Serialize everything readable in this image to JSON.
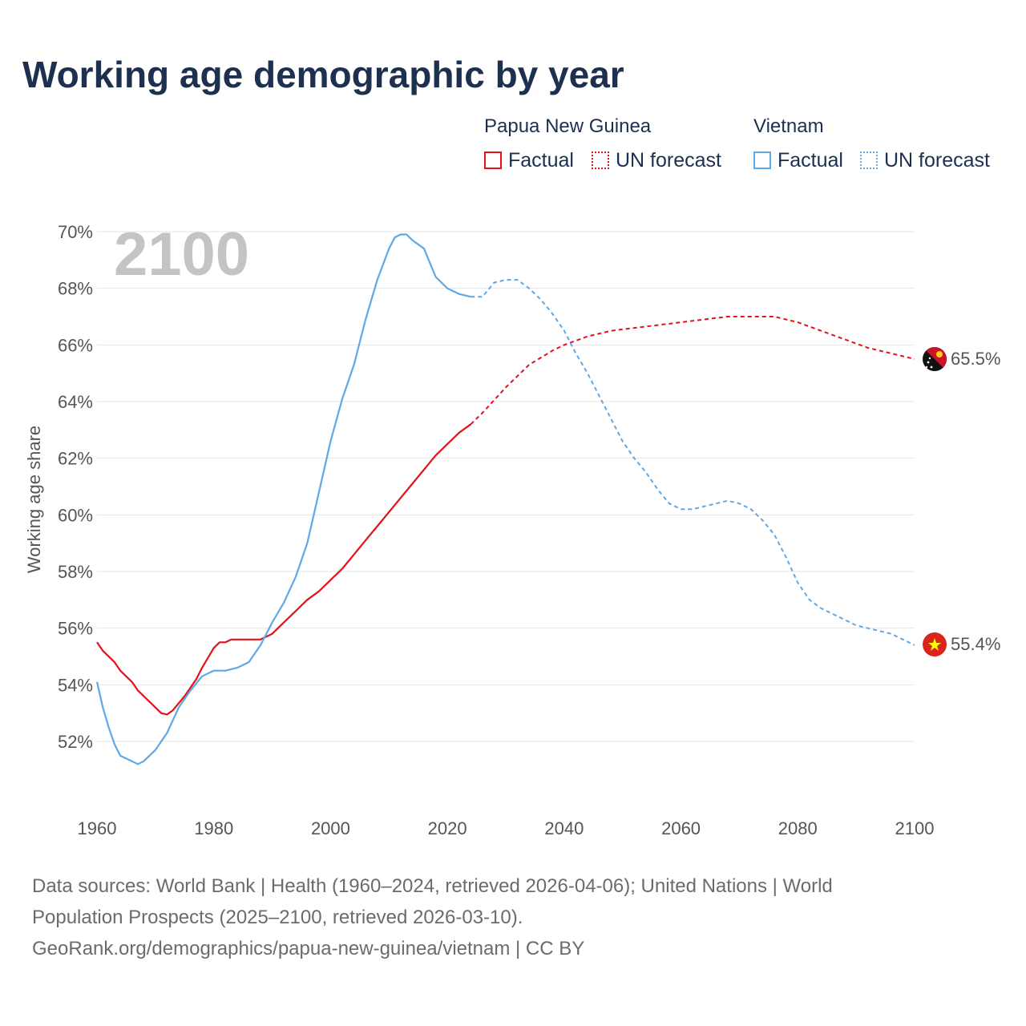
{
  "title": "Working age demographic by year",
  "legend": {
    "groups": [
      {
        "name": "Papua New Guinea",
        "factual_label": "Factual",
        "forecast_label": "UN forecast",
        "color": "#e3111b"
      },
      {
        "name": "Vietnam",
        "factual_label": "Factual",
        "forecast_label": "UN forecast",
        "color": "#5fa8e6"
      }
    ]
  },
  "year_watermark": "2100",
  "chart_data": {
    "type": "line",
    "title": "Working age demographic by year",
    "xlabel": "",
    "ylabel": "Working age share",
    "xlim": [
      1960,
      2100
    ],
    "ylim": [
      50.5,
      70.5
    ],
    "x_ticks": [
      "1960",
      "1980",
      "2000",
      "2020",
      "2040",
      "2060",
      "2080",
      "2100"
    ],
    "y_ticks": [
      "52%",
      "54%",
      "56%",
      "58%",
      "60%",
      "62%",
      "64%",
      "66%",
      "68%",
      "70%"
    ],
    "y_tick_values": [
      52,
      54,
      56,
      58,
      60,
      62,
      64,
      66,
      68,
      70
    ],
    "factual_range": [
      1960,
      2024
    ],
    "forecast_range": [
      2025,
      2100
    ],
    "series": [
      {
        "name": "Papua New Guinea",
        "color": "#e3111b",
        "end_label": "65.5%",
        "x": [
          1960,
          1961,
          1963,
          1964,
          1966,
          1967,
          1969,
          1971,
          1972,
          1973,
          1975,
          1976,
          1977,
          1978,
          1980,
          1981,
          1982,
          1983,
          1985,
          1988,
          1990,
          1992,
          1994,
          1996,
          1998,
          2000,
          2002,
          2004,
          2006,
          2008,
          2010,
          2012,
          2014,
          2016,
          2018,
          2020,
          2022,
          2024,
          2026,
          2030,
          2034,
          2038,
          2040,
          2044,
          2048,
          2052,
          2056,
          2060,
          2064,
          2068,
          2072,
          2076,
          2080,
          2084,
          2088,
          2092,
          2096,
          2100
        ],
        "y": [
          55.5,
          55.2,
          54.8,
          54.5,
          54.1,
          53.8,
          53.4,
          53.0,
          52.95,
          53.1,
          53.6,
          53.9,
          54.2,
          54.6,
          55.3,
          55.5,
          55.5,
          55.6,
          55.6,
          55.6,
          55.8,
          56.2,
          56.6,
          57.0,
          57.3,
          57.7,
          58.1,
          58.6,
          59.1,
          59.6,
          60.1,
          60.6,
          61.1,
          61.6,
          62.1,
          62.5,
          62.9,
          63.2,
          63.6,
          64.5,
          65.3,
          65.8,
          66.0,
          66.3,
          66.5,
          66.6,
          66.7,
          66.8,
          66.9,
          67.0,
          67.0,
          67.0,
          66.8,
          66.5,
          66.2,
          65.9,
          65.7,
          65.5
        ]
      },
      {
        "name": "Vietnam",
        "color": "#5fa8e6",
        "end_label": "55.4%",
        "x": [
          1960,
          1961,
          1962,
          1963,
          1964,
          1966,
          1967,
          1968,
          1970,
          1972,
          1974,
          1976,
          1978,
          1980,
          1982,
          1984,
          1986,
          1988,
          1990,
          1992,
          1994,
          1996,
          1998,
          2000,
          2002,
          2004,
          2006,
          2008,
          2010,
          2011,
          2012,
          2013,
          2014,
          2016,
          2018,
          2020,
          2022,
          2024,
          2026,
          2028,
          2030,
          2032,
          2034,
          2036,
          2038,
          2040,
          2042,
          2044,
          2046,
          2048,
          2050,
          2052,
          2054,
          2056,
          2058,
          2060,
          2062,
          2064,
          2066,
          2068,
          2070,
          2072,
          2074,
          2076,
          2078,
          2080,
          2082,
          2084,
          2086,
          2088,
          2090,
          2092,
          2094,
          2096,
          2098,
          2100
        ],
        "y": [
          54.1,
          53.2,
          52.5,
          51.9,
          51.5,
          51.3,
          51.2,
          51.3,
          51.7,
          52.3,
          53.2,
          53.8,
          54.3,
          54.5,
          54.5,
          54.6,
          54.8,
          55.4,
          56.2,
          56.9,
          57.8,
          59.0,
          60.8,
          62.6,
          64.1,
          65.3,
          66.9,
          68.3,
          69.4,
          69.8,
          69.9,
          69.9,
          69.7,
          69.4,
          68.4,
          68.0,
          67.8,
          67.7,
          67.7,
          68.2,
          68.3,
          68.3,
          68.0,
          67.6,
          67.1,
          66.5,
          65.7,
          65.0,
          64.2,
          63.4,
          62.6,
          62.0,
          61.5,
          60.9,
          60.4,
          60.2,
          60.2,
          60.3,
          60.4,
          60.5,
          60.4,
          60.2,
          59.8,
          59.3,
          58.5,
          57.6,
          57.0,
          56.7,
          56.5,
          56.3,
          56.1,
          56.0,
          55.9,
          55.8,
          55.6,
          55.4
        ]
      }
    ]
  },
  "footer": {
    "line1": "Data sources: World Bank | Health (1960–2024, retrieved 2026-04-06); United Nations | World",
    "line2": "Population Prospects (2025–2100, retrieved 2026-03-10).",
    "line3": "GeoRank.org/demographics/papua-new-guinea/vietnam | CC BY"
  }
}
